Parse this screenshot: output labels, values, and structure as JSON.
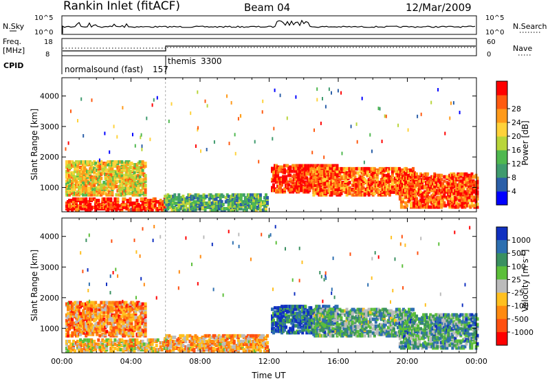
{
  "header": {
    "station": "Rankin Inlet (fitACF)",
    "beam": "Beam 04",
    "date": "12/Mar/2009"
  },
  "top_panels": {
    "nsky_label": "N.Sky",
    "nsearch_label": "N.Search",
    "nsky_ticks": [
      "10^5",
      "10^0"
    ],
    "nsearch_ticks": [
      "10^5",
      "10^0"
    ],
    "freq_label": "Freq.",
    "freq_unit": "[MHz]",
    "freq_ticks": [
      "18",
      "8"
    ],
    "nave_label": "Nave",
    "nave_ticks": [
      "60",
      "0"
    ],
    "cpid_label": "CPID",
    "cpid_segments": [
      {
        "name": "normalsound (fast)",
        "id": "157",
        "start_hr": 0,
        "end_hr": 6
      },
      {
        "name": "themis",
        "id": "3300",
        "start_hr": 6,
        "end_hr": 24
      }
    ]
  },
  "chart_data": [
    {
      "type": "heatmap",
      "xlabel": "",
      "ylabel": "Slant Range [km]",
      "xlim": [
        0,
        24
      ],
      "ylim": [
        200,
        4600
      ],
      "y_ticks": [
        1000,
        2000,
        3000,
        4000
      ],
      "colorbar": {
        "label": "Power [dB]",
        "ticks": [
          "4",
          "8",
          "12",
          "16",
          "20",
          "24",
          "28"
        ],
        "colors": [
          "#0000ff",
          "#2b5fa8",
          "#3f9b6e",
          "#4fb84f",
          "#b8d53a",
          "#ffd23a",
          "#ff9a1a",
          "#ff5a10",
          "#ff0000"
        ]
      },
      "echo_regions": [
        {
          "x": [
            0.2,
            5.9
          ],
          "y": [
            200,
            600
          ],
          "level": 0.9
        },
        {
          "x": [
            0.2,
            4.8
          ],
          "y": [
            700,
            1800
          ],
          "level": 0.6
        },
        {
          "x": [
            5.9,
            11.9
          ],
          "y": [
            200,
            700
          ],
          "level": 0.35
        },
        {
          "x": [
            12.1,
            15.9
          ],
          "y": [
            800,
            1700
          ],
          "level": 0.9
        },
        {
          "x": [
            14.5,
            20.4
          ],
          "y": [
            700,
            1600
          ],
          "level": 0.8
        },
        {
          "x": [
            19.5,
            24.0
          ],
          "y": [
            300,
            1400
          ],
          "level": 0.85
        }
      ]
    },
    {
      "type": "heatmap",
      "xlabel": "Time UT",
      "ylabel": "Slant Range [km]",
      "xlim": [
        0,
        24
      ],
      "ylim": [
        200,
        4600
      ],
      "x_ticks": [
        "00:00",
        "04:00",
        "08:00",
        "12:00",
        "16:00",
        "20:00",
        "00:00"
      ],
      "y_ticks": [
        1000,
        2000,
        3000,
        4000
      ],
      "colorbar": {
        "label": "Velocity [m s^-1]",
        "ticks": [
          "1000",
          "500",
          "100",
          "25",
          "-25",
          "-100",
          "-500",
          "-1000"
        ],
        "colors": [
          "#1030c0",
          "#2d6fb0",
          "#3a9060",
          "#5cbf3a",
          "#bbbbbb",
          "#ffc020",
          "#ff8a10",
          "#ff5010",
          "#ff0000"
        ]
      },
      "echo_regions": [
        {
          "x": [
            0.2,
            5.9
          ],
          "y": [
            200,
            600
          ],
          "level": 0.6
        },
        {
          "x": [
            0.2,
            4.8
          ],
          "y": [
            700,
            1800
          ],
          "level": 0.7
        },
        {
          "x": [
            5.9,
            11.9
          ],
          "y": [
            200,
            700
          ],
          "level": 0.65
        },
        {
          "x": [
            12.1,
            15.9
          ],
          "y": [
            800,
            1700
          ],
          "level": 0.15
        },
        {
          "x": [
            14.5,
            20.4
          ],
          "y": [
            700,
            1600
          ],
          "level": 0.35
        },
        {
          "x": [
            19.5,
            24.0
          ],
          "y": [
            300,
            1400
          ],
          "level": 0.3
        }
      ]
    }
  ]
}
